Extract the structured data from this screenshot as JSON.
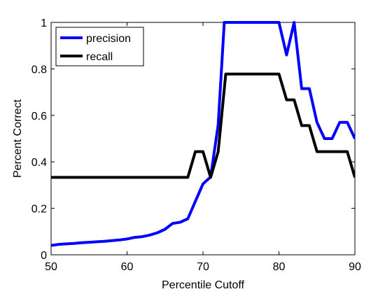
{
  "chart_data": {
    "type": "line",
    "xlabel": "Percentile Cutoff",
    "ylabel": "Percent Correct",
    "xlim": [
      50,
      90
    ],
    "ylim": [
      0,
      1
    ],
    "xticks": [
      50,
      60,
      70,
      80,
      90
    ],
    "yticks": [
      0,
      0.2,
      0.4,
      0.6,
      0.8,
      1
    ],
    "xtick_labels": [
      "50",
      "60",
      "70",
      "80",
      "90"
    ],
    "ytick_labels": [
      "0",
      "0.2",
      "0.4",
      "0.6",
      "0.8",
      "1"
    ],
    "grid": false,
    "legend_position": "top-left",
    "series": [
      {
        "name": "precision",
        "color": "#0000ff",
        "x": [
          50,
          51,
          52,
          53,
          54,
          55,
          56,
          57,
          58,
          59,
          60,
          61,
          62,
          63,
          64,
          65,
          66,
          67,
          68,
          69,
          70,
          71,
          72,
          72.8,
          73,
          74,
          75,
          76,
          77,
          78,
          79,
          80,
          81,
          82,
          83,
          84,
          85,
          86,
          87,
          88,
          89,
          90
        ],
        "y": [
          0.04,
          0.045,
          0.047,
          0.049,
          0.052,
          0.054,
          0.056,
          0.058,
          0.061,
          0.064,
          0.068,
          0.075,
          0.078,
          0.085,
          0.095,
          0.11,
          0.135,
          0.14,
          0.155,
          0.23,
          0.305,
          0.335,
          0.56,
          1.0,
          1.0,
          1.0,
          1.0,
          1.0,
          1.0,
          1.0,
          1.0,
          1.0,
          0.86,
          1.0,
          0.715,
          0.715,
          0.57,
          0.5,
          0.5,
          0.57,
          0.57,
          0.5
        ]
      },
      {
        "name": "recall",
        "color": "#000000",
        "x": [
          50,
          51,
          52,
          53,
          54,
          55,
          56,
          57,
          58,
          59,
          60,
          61,
          62,
          63,
          64,
          65,
          66,
          67,
          68,
          69,
          70,
          71,
          72,
          73,
          74,
          75,
          76,
          77,
          78,
          79,
          80,
          81,
          82,
          83,
          84,
          85,
          86,
          87,
          88,
          89,
          90
        ],
        "y": [
          0.333,
          0.333,
          0.333,
          0.333,
          0.333,
          0.333,
          0.333,
          0.333,
          0.333,
          0.333,
          0.333,
          0.333,
          0.333,
          0.333,
          0.333,
          0.333,
          0.333,
          0.333,
          0.333,
          0.444,
          0.444,
          0.333,
          0.444,
          0.778,
          0.778,
          0.778,
          0.778,
          0.778,
          0.778,
          0.778,
          0.778,
          0.667,
          0.667,
          0.556,
          0.556,
          0.444,
          0.444,
          0.444,
          0.444,
          0.444,
          0.333
        ]
      }
    ]
  }
}
